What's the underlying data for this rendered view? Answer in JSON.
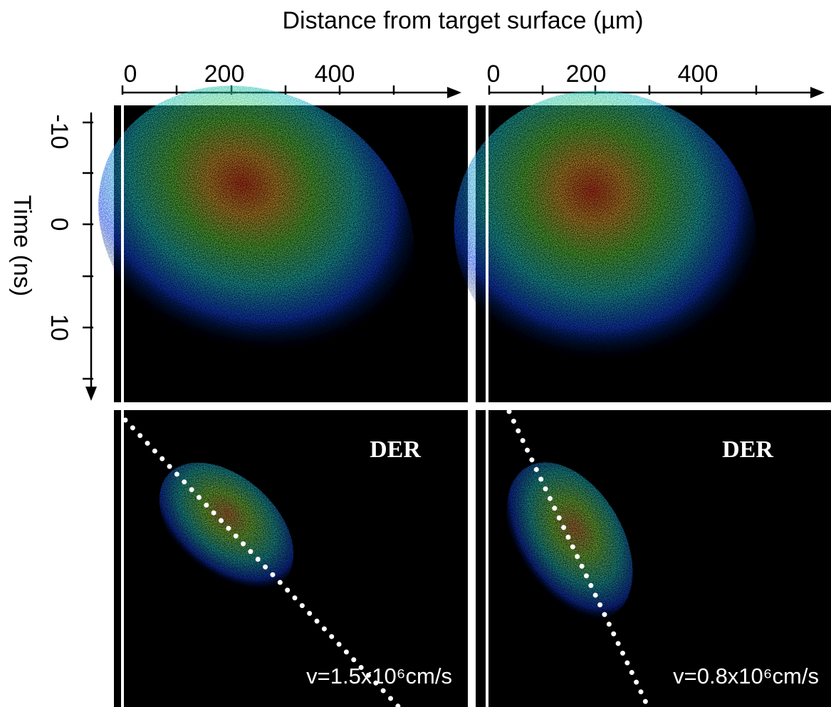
{
  "title": "Distance from target surface (µm)",
  "y_label": "Time (ns)",
  "y_ticks": [
    -10,
    0,
    10
  ],
  "top_panels": [
    {
      "x_ticks": [
        0,
        200,
        400
      ]
    },
    {
      "x_ticks": [
        0,
        200,
        400
      ]
    }
  ],
  "bottom_panels": [
    {
      "label": "DER",
      "velocity": "v=1.5x10⁶cm/s"
    },
    {
      "label": "DER",
      "velocity": "v=0.8x10⁶cm/s"
    }
  ]
}
